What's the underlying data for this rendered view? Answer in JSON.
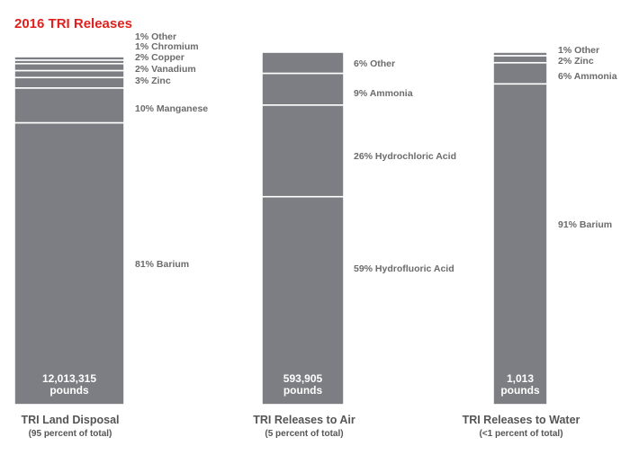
{
  "chart_data": {
    "type": "bar",
    "stacked": true,
    "normalized": true,
    "title": "2016 TRI Releases",
    "colors": {
      "title": "#e0201e",
      "bar": "#7d7e83",
      "separator": "#ffffff",
      "label": "#6b6b6b"
    },
    "bars": [
      {
        "category": "TRI Land Disposal",
        "subtitle": "(95 percent of total)",
        "total_line1": "12,013,315",
        "total_line2": "pounds",
        "segments": [
          {
            "label": "81% Barium",
            "value": 81
          },
          {
            "label": "10% Manganese",
            "value": 10
          },
          {
            "label": "3% Zinc",
            "value": 3
          },
          {
            "label": "2% Vanadium",
            "value": 2
          },
          {
            "label": "2% Copper",
            "value": 2
          },
          {
            "label": "1% Chromium",
            "value": 1
          },
          {
            "label": "1% Other",
            "value": 1
          }
        ]
      },
      {
        "category": "TRI Releases to Air",
        "subtitle": "(5 percent of total)",
        "total_line1": "593,905",
        "total_line2": "pounds",
        "segments": [
          {
            "label": "59% Hydrofluoric Acid",
            "value": 59
          },
          {
            "label": "26% Hydrochloric Acid",
            "value": 26
          },
          {
            "label": "9% Ammonia",
            "value": 9
          },
          {
            "label": "6% Other",
            "value": 6
          }
        ]
      },
      {
        "category": "TRI Releases to Water",
        "subtitle": "(<1 percent of total)",
        "total_line1": "1,013",
        "total_line2": "pounds",
        "segments": [
          {
            "label": "91% Barium",
            "value": 91
          },
          {
            "label": "6% Ammonia",
            "value": 6
          },
          {
            "label": "2% Zinc",
            "value": 2
          },
          {
            "label": "1% Other",
            "value": 1
          }
        ]
      }
    ]
  }
}
